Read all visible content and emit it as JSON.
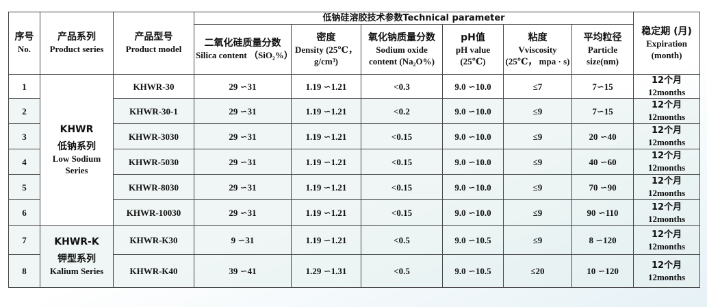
{
  "header": {
    "group_title": "低钠硅溶胶技术参数Technical parameter",
    "columns": [
      {
        "zh": "序号",
        "en": "No."
      },
      {
        "zh": "产品系列",
        "en": "Product series"
      },
      {
        "zh": "产品型号",
        "en": "Product model"
      },
      {
        "zh": "二氧化硅质量分数",
        "en": "Silica content （SiO₂%）"
      },
      {
        "zh": "密度",
        "en": "Density (25℃，g/cm³)"
      },
      {
        "zh": "氧化钠质量分数",
        "en": "Sodium oxide content (Na₂O%)"
      },
      {
        "zh": "pH值",
        "en": "pH value (25℃)"
      },
      {
        "zh": "粘度",
        "en": "Vviscosity (25℃， mpa · s)"
      },
      {
        "zh": "平均粒径",
        "en": "Particle size(nm)"
      },
      {
        "zh": "稳定期 (月)",
        "en": "Expiration (month)"
      }
    ]
  },
  "series": [
    {
      "code": "KHWR",
      "zh": "低钠系列",
      "en": "Low Sodium Series",
      "rows": 6
    },
    {
      "code": "KHWR-K",
      "zh": "钾型系列",
      "en": "Kalium Series",
      "rows": 2
    }
  ],
  "rows": [
    [
      "1",
      "KHWR-30",
      "29 ∽31",
      "1.19 ∽1.21",
      "<0.3",
      "9.0 ∽10.0",
      "≤7",
      "7∽15",
      "12个月",
      "12months"
    ],
    [
      "2",
      "KHWR-30-1",
      "29 ∽31",
      "1.19 ∽1.21",
      "<0.2",
      "9.0 ∽10.0",
      "≤9",
      "7∽15",
      "12个月",
      "12months"
    ],
    [
      "3",
      "KHWR-3030",
      "29 ∽31",
      "1.19 ∽1.21",
      "<0.15",
      "9.0 ∽10.0",
      "≤9",
      "20 ∽40",
      "12个月",
      "12months"
    ],
    [
      "4",
      "KHWR-5030",
      "29 ∽31",
      "1.19 ∽1.21",
      "<0.15",
      "9.0 ∽10.0",
      "≤9",
      "40 ∽60",
      "12个月",
      "12months"
    ],
    [
      "5",
      "KHWR-8030",
      "29 ∽31",
      "1.19 ∽1.21",
      "<0.15",
      "9.0 ∽10.0",
      "≤9",
      "70 ∽90",
      "12个月",
      "12months"
    ],
    [
      "6",
      "KHWR-10030",
      "29 ∽31",
      "1.19 ∽1.21",
      "<0.15",
      "9.0 ∽10.0",
      "≤9",
      "90 ∽110",
      "12个月",
      "12months"
    ],
    [
      "7",
      "KHWR-K30",
      "9 ∽31",
      "1.19 ∽1.21",
      "<0.5",
      "9.0 ∽10.5",
      "≤9",
      "8 ∽120",
      "12个月",
      "12months"
    ],
    [
      "8",
      "KHWR-K40",
      "39 ∽41",
      "1.29 ∽1.31",
      "<0.5",
      "9.0 ∽10.5",
      "≤20",
      "10 ∽120",
      "12个月",
      "12months"
    ]
  ]
}
